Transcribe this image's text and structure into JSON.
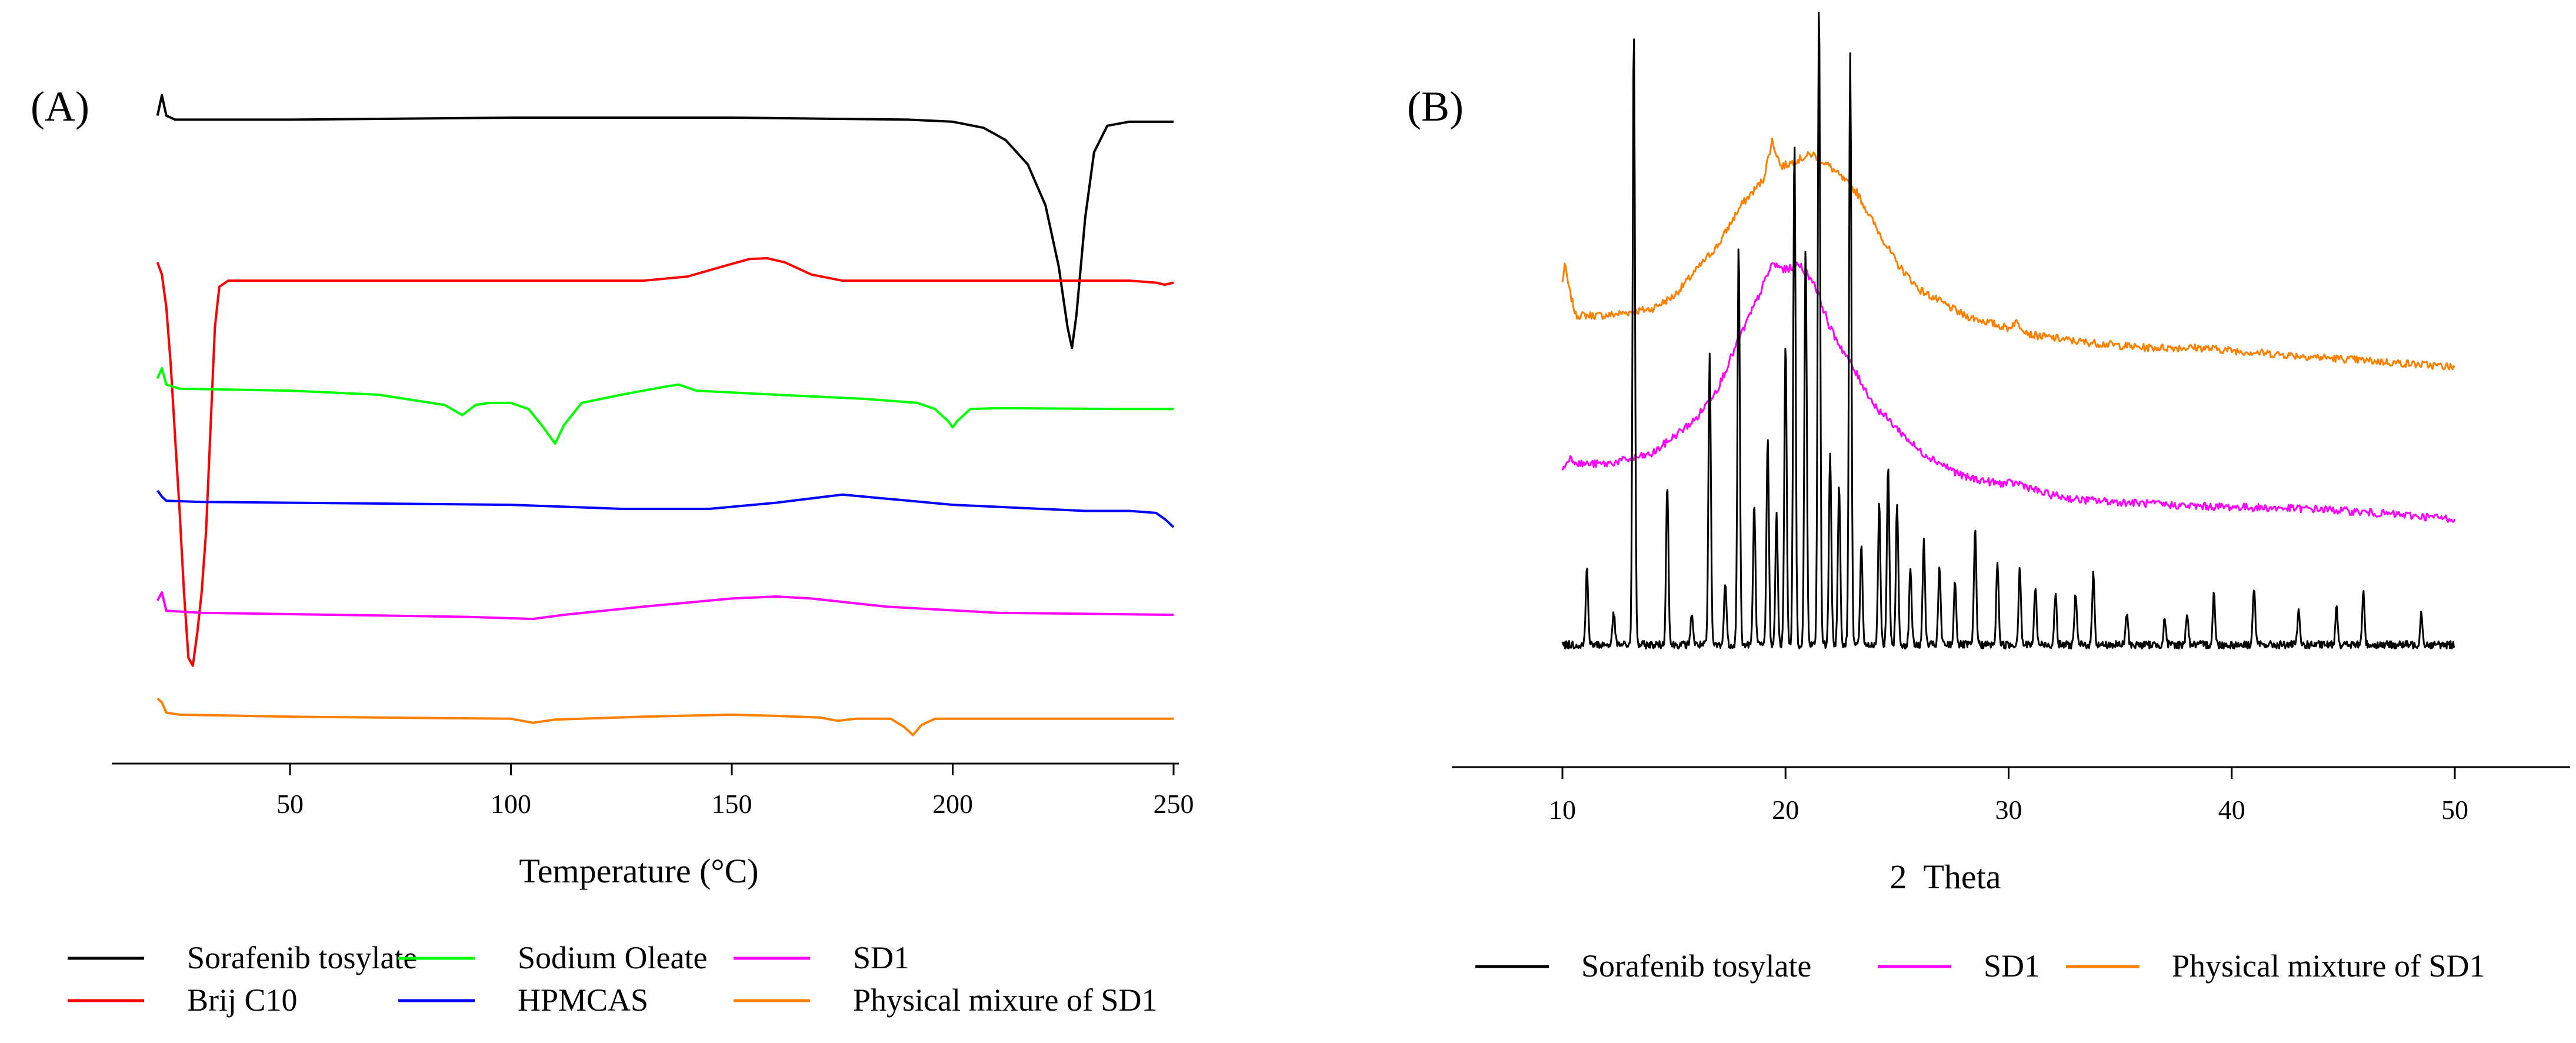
{
  "chart_data": [
    {
      "panel_label": "(A)",
      "type": "line",
      "xlabel": "Temperature (°C)",
      "ylabel": "",
      "xlim": [
        12,
        250
      ],
      "xticks": [
        50,
        100,
        150,
        200,
        250
      ],
      "yticks_shown": false,
      "grid": false,
      "legend_placement": "bottom",
      "series": [
        {
          "name": "Sorafenib tosylate",
          "color": "#000000",
          "points": [
            [
              20,
              0.97
            ],
            [
              21,
              1.02
            ],
            [
              22,
              0.97
            ],
            [
              24,
              0.96
            ],
            [
              50,
              0.96
            ],
            [
              100,
              0.965
            ],
            [
              150,
              0.965
            ],
            [
              190,
              0.96
            ],
            [
              200,
              0.955
            ],
            [
              207,
              0.94
            ],
            [
              212,
              0.91
            ],
            [
              217,
              0.85
            ],
            [
              221,
              0.75
            ],
            [
              224,
              0.6
            ],
            [
              226,
              0.45
            ],
            [
              227,
              0.4
            ],
            [
              228,
              0.48
            ],
            [
              230,
              0.72
            ],
            [
              232,
              0.88
            ],
            [
              235,
              0.945
            ],
            [
              240,
              0.955
            ],
            [
              250,
              0.955
            ]
          ]
        },
        {
          "name": "Brij C10",
          "color": "#ff0000",
          "points": [
            [
              20,
              0.61
            ],
            [
              21,
              0.58
            ],
            [
              22,
              0.5
            ],
            [
              23,
              0.36
            ],
            [
              24,
              0.18
            ],
            [
              25,
              0.0
            ],
            [
              26,
              -0.2
            ],
            [
              27,
              -0.36
            ],
            [
              28,
              -0.38
            ],
            [
              29,
              -0.3
            ],
            [
              30,
              -0.2
            ],
            [
              31,
              -0.05
            ],
            [
              32,
              0.2
            ],
            [
              33,
              0.45
            ],
            [
              34,
              0.55
            ],
            [
              36,
              0.565
            ],
            [
              50,
              0.565
            ],
            [
              100,
              0.565
            ],
            [
              130,
              0.565
            ],
            [
              140,
              0.575
            ],
            [
              148,
              0.6
            ],
            [
              154,
              0.618
            ],
            [
              158,
              0.62
            ],
            [
              162,
              0.61
            ],
            [
              168,
              0.58
            ],
            [
              175,
              0.565
            ],
            [
              200,
              0.565
            ],
            [
              240,
              0.565
            ],
            [
              246,
              0.56
            ],
            [
              248,
              0.555
            ],
            [
              250,
              0.56
            ]
          ]
        },
        {
          "name": "Sodium Oleate",
          "color": "#00ff00",
          "points": [
            [
              20,
              0.325
            ],
            [
              21,
              0.35
            ],
            [
              22,
              0.31
            ],
            [
              25,
              0.3
            ],
            [
              50,
              0.295
            ],
            [
              70,
              0.285
            ],
            [
              85,
              0.26
            ],
            [
              89,
              0.235
            ],
            [
              92,
              0.26
            ],
            [
              95,
              0.265
            ],
            [
              100,
              0.265
            ],
            [
              104,
              0.25
            ],
            [
              107,
              0.21
            ],
            [
              110,
              0.165
            ],
            [
              112,
              0.21
            ],
            [
              116,
              0.265
            ],
            [
              125,
              0.285
            ],
            [
              135,
              0.305
            ],
            [
              138,
              0.31
            ],
            [
              142,
              0.295
            ],
            [
              160,
              0.285
            ],
            [
              180,
              0.275
            ],
            [
              192,
              0.265
            ],
            [
              196,
              0.25
            ],
            [
              199,
              0.22
            ],
            [
              200,
              0.205
            ],
            [
              201,
              0.22
            ],
            [
              204,
              0.25
            ],
            [
              210,
              0.252
            ],
            [
              240,
              0.25
            ],
            [
              250,
              0.25
            ]
          ]
        },
        {
          "name": "HPMCAS",
          "color": "#0000ff",
          "points": [
            [
              20,
              0.05
            ],
            [
              21,
              0.035
            ],
            [
              22,
              0.025
            ],
            [
              30,
              0.022
            ],
            [
              50,
              0.02
            ],
            [
              100,
              0.015
            ],
            [
              125,
              0.005
            ],
            [
              145,
              0.005
            ],
            [
              160,
              0.02
            ],
            [
              175,
              0.04
            ],
            [
              185,
              0.03
            ],
            [
              200,
              0.015
            ],
            [
              230,
              0.0
            ],
            [
              240,
              0.0
            ],
            [
              246,
              -0.005
            ],
            [
              248,
              -0.02
            ],
            [
              250,
              -0.04
            ]
          ]
        },
        {
          "name": "SD1",
          "color": "#ff00ff",
          "points": [
            [
              20,
              -0.22
            ],
            [
              21,
              -0.2
            ],
            [
              22,
              -0.245
            ],
            [
              30,
              -0.25
            ],
            [
              60,
              -0.255
            ],
            [
              90,
              -0.26
            ],
            [
              105,
              -0.265
            ],
            [
              112,
              -0.255
            ],
            [
              130,
              -0.235
            ],
            [
              150,
              -0.215
            ],
            [
              160,
              -0.21
            ],
            [
              168,
              -0.215
            ],
            [
              185,
              -0.235
            ],
            [
              210,
              -0.25
            ],
            [
              250,
              -0.255
            ]
          ]
        },
        {
          "name": "Physical mixure of SD1",
          "color": "#ff8000",
          "points": [
            [
              20,
              -0.46
            ],
            [
              21,
              -0.47
            ],
            [
              22,
              -0.495
            ],
            [
              25,
              -0.5
            ],
            [
              50,
              -0.505
            ],
            [
              100,
              -0.51
            ],
            [
              105,
              -0.52
            ],
            [
              110,
              -0.512
            ],
            [
              130,
              -0.505
            ],
            [
              150,
              -0.5
            ],
            [
              160,
              -0.503
            ],
            [
              170,
              -0.507
            ],
            [
              174,
              -0.515
            ],
            [
              178,
              -0.51
            ],
            [
              186,
              -0.51
            ],
            [
              189,
              -0.53
            ],
            [
              191,
              -0.55
            ],
            [
              193,
              -0.525
            ],
            [
              196,
              -0.51
            ],
            [
              250,
              -0.51
            ]
          ]
        }
      ]
    },
    {
      "panel_label": "(B)",
      "type": "line",
      "xlabel": "2  Theta",
      "ylabel": "",
      "xlim": [
        5,
        55
      ],
      "xticks": [
        10,
        20,
        30,
        40,
        50
      ],
      "yticks_shown": false,
      "grid": false,
      "legend_placement": "bottom",
      "series": [
        {
          "name": "Sorafenib tosylate",
          "color": "#000000",
          "baseline": 0.04,
          "noise": 0.012,
          "peaks": [
            [
              11.1,
              0.12
            ],
            [
              12.3,
              0.05
            ],
            [
              13.2,
              0.95
            ],
            [
              14.7,
              0.25
            ],
            [
              15.8,
              0.05
            ],
            [
              16.6,
              0.45
            ],
            [
              17.3,
              0.1
            ],
            [
              17.9,
              0.62
            ],
            [
              18.6,
              0.22
            ],
            [
              19.2,
              0.32
            ],
            [
              19.6,
              0.2
            ],
            [
              20.0,
              0.47
            ],
            [
              20.4,
              0.78
            ],
            [
              20.9,
              0.62
            ],
            [
              21.5,
              1.0
            ],
            [
              22.0,
              0.3
            ],
            [
              22.4,
              0.25
            ],
            [
              22.9,
              0.92
            ],
            [
              23.4,
              0.15
            ],
            [
              24.2,
              0.22
            ],
            [
              24.6,
              0.28
            ],
            [
              25.0,
              0.22
            ],
            [
              25.6,
              0.12
            ],
            [
              26.2,
              0.16
            ],
            [
              26.9,
              0.12
            ],
            [
              27.6,
              0.1
            ],
            [
              28.5,
              0.18
            ],
            [
              29.5,
              0.13
            ],
            [
              30.5,
              0.12
            ],
            [
              31.2,
              0.09
            ],
            [
              32.1,
              0.08
            ],
            [
              33.0,
              0.08
            ],
            [
              33.8,
              0.11
            ],
            [
              35.3,
              0.05
            ],
            [
              37.0,
              0.04
            ],
            [
              38.0,
              0.05
            ],
            [
              39.2,
              0.08
            ],
            [
              41.0,
              0.09
            ],
            [
              43.0,
              0.05
            ],
            [
              44.7,
              0.06
            ],
            [
              45.9,
              0.08
            ],
            [
              48.5,
              0.05
            ]
          ]
        },
        {
          "name": "SD1",
          "color": "#ff00ff",
          "points": [
            [
              10,
              0.31
            ],
            [
              10.3,
              0.33
            ],
            [
              10.8,
              0.32
            ],
            [
              12,
              0.32
            ],
            [
              14,
              0.335
            ],
            [
              16,
              0.39
            ],
            [
              17,
              0.44
            ],
            [
              18,
              0.52
            ],
            [
              18.8,
              0.58
            ],
            [
              19.4,
              0.63
            ],
            [
              20,
              0.62
            ],
            [
              20.6,
              0.63
            ],
            [
              21.3,
              0.6
            ],
            [
              22,
              0.53
            ],
            [
              23,
              0.47
            ],
            [
              24,
              0.41
            ],
            [
              26,
              0.34
            ],
            [
              28,
              0.3
            ],
            [
              29.5,
              0.29
            ],
            [
              30.5,
              0.29
            ],
            [
              31.5,
              0.275
            ],
            [
              33,
              0.265
            ],
            [
              38,
              0.255
            ],
            [
              44,
              0.25
            ],
            [
              50,
              0.235
            ]
          ]
        },
        {
          "name": "Physical mixture of SD1",
          "color": "#ff8000",
          "points": [
            [
              10,
              0.6
            ],
            [
              10.1,
              0.63
            ],
            [
              10.3,
              0.59
            ],
            [
              10.6,
              0.55
            ],
            [
              12,
              0.55
            ],
            [
              14,
              0.56
            ],
            [
              15,
              0.58
            ],
            [
              16,
              0.62
            ],
            [
              17,
              0.66
            ],
            [
              18,
              0.72
            ],
            [
              19,
              0.76
            ],
            [
              19.4,
              0.82
            ],
            [
              19.8,
              0.78
            ],
            [
              20.5,
              0.79
            ],
            [
              21.2,
              0.8
            ],
            [
              22,
              0.78
            ],
            [
              23.2,
              0.74
            ],
            [
              24,
              0.69
            ],
            [
              25,
              0.63
            ],
            [
              26,
              0.59
            ],
            [
              28,
              0.55
            ],
            [
              30,
              0.53
            ],
            [
              30.3,
              0.54
            ],
            [
              31,
              0.52
            ],
            [
              33,
              0.51
            ],
            [
              36,
              0.5
            ],
            [
              38.5,
              0.5
            ],
            [
              42,
              0.49
            ],
            [
              46,
              0.48
            ],
            [
              50,
              0.47
            ]
          ]
        }
      ]
    }
  ]
}
